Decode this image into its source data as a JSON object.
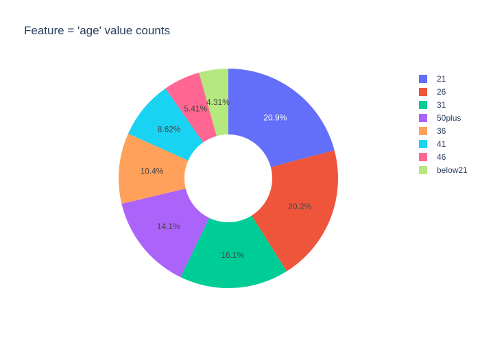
{
  "chart_data": {
    "type": "pie",
    "title": "Feature = 'age' value counts",
    "hole": true,
    "direction": "clockwise",
    "start": "top",
    "legend_position": "right",
    "slices": [
      {
        "label": "21",
        "value": 20.9,
        "text": "20.9%",
        "color": "#636efa",
        "text_color": "#ffffff"
      },
      {
        "label": "26",
        "value": 20.2,
        "text": "20.2%",
        "color": "#ef553b",
        "text_color": "#444444"
      },
      {
        "label": "31",
        "value": 16.1,
        "text": "16.1%",
        "color": "#00cc96",
        "text_color": "#444444"
      },
      {
        "label": "50plus",
        "value": 14.1,
        "text": "14.1%",
        "color": "#ab63fa",
        "text_color": "#444444"
      },
      {
        "label": "36",
        "value": 10.4,
        "text": "10.4%",
        "color": "#ffa15a",
        "text_color": "#444444"
      },
      {
        "label": "41",
        "value": 8.62,
        "text": "8.62%",
        "color": "#19d3f3",
        "text_color": "#444444"
      },
      {
        "label": "46",
        "value": 5.41,
        "text": "5.41%",
        "color": "#ff6692",
        "text_color": "#444444"
      },
      {
        "label": "below21",
        "value": 4.31,
        "text": "4.31%",
        "color": "#b6e880",
        "text_color": "#444444"
      }
    ],
    "legend_order": [
      "21",
      "26",
      "31",
      "50plus",
      "36",
      "41",
      "46",
      "below21"
    ]
  }
}
